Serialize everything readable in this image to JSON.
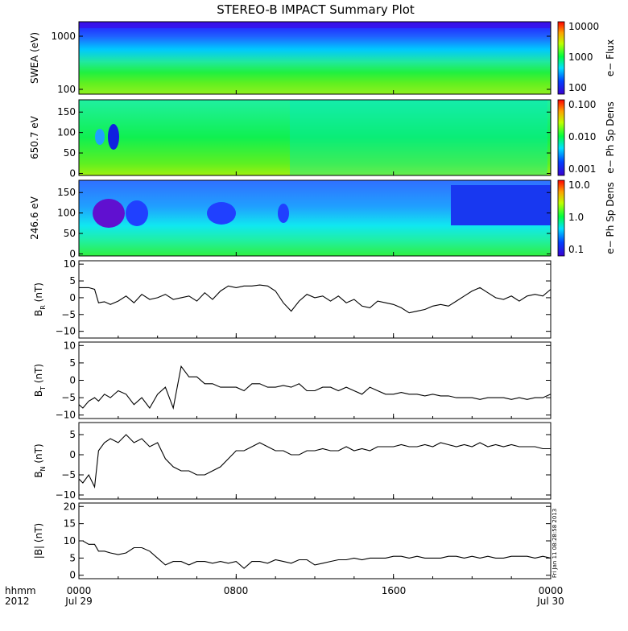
{
  "title": "STEREO-B IMPACT Summary Plot",
  "side_stamp": "Fri Jan 11 08:28:58 2013",
  "x_axis": {
    "row_label_1": "hhmm",
    "row_label_2": "2012",
    "ticks": [
      {
        "hhmm": "0000",
        "date": "Jul 29"
      },
      {
        "hhmm": "0800",
        "date": ""
      },
      {
        "hhmm": "1600",
        "date": ""
      },
      {
        "hhmm": "0000",
        "date": "Jul 30"
      }
    ]
  },
  "chart_data": [
    {
      "type": "heatmap",
      "title": "",
      "ylabel": "SWEA (eV)",
      "y_scale": "log",
      "ylim": [
        95,
        2000
      ],
      "yticks": [
        "1000",
        "100"
      ],
      "colorbar": {
        "label": "e− Flux",
        "scale": "log",
        "ticks": [
          "10000",
          "1000",
          "100"
        ]
      }
    },
    {
      "type": "heatmap",
      "title": "",
      "ylabel": "650.7 eV",
      "ylim": [
        -5,
        180
      ],
      "yticks": [
        "150",
        "100",
        "50",
        "0"
      ],
      "colorbar": {
        "label": "e− Ph Sp Dens",
        "scale": "log",
        "ticks": [
          "0.100",
          "0.010",
          "0.001"
        ]
      }
    },
    {
      "type": "heatmap",
      "title": "",
      "ylabel": "246.6 eV",
      "ylim": [
        -5,
        180
      ],
      "yticks": [
        "150",
        "100",
        "50",
        "0"
      ],
      "colorbar": {
        "label": "e− Ph Sp Dens",
        "scale": "log",
        "ticks": [
          "10.0",
          "1.0",
          "0.1"
        ]
      }
    },
    {
      "type": "line",
      "ylabel_main": "B",
      "ylabel_sub": "R",
      "ylabel_unit": " (nT)",
      "ylim": [
        -12,
        11
      ],
      "yticks": [
        "10",
        "5",
        "0",
        "−5",
        "−10"
      ],
      "x_hours": [
        0,
        0.2,
        0.5,
        0.8,
        1,
        1.3,
        1.6,
        2,
        2.4,
        2.8,
        3.2,
        3.6,
        4,
        4.4,
        4.8,
        5.2,
        5.6,
        6,
        6.4,
        6.8,
        7.2,
        7.6,
        8,
        8.4,
        8.8,
        9.2,
        9.6,
        10,
        10.4,
        10.8,
        11.2,
        11.6,
        12,
        12.4,
        12.8,
        13.2,
        13.6,
        14,
        14.4,
        14.8,
        15.2,
        15.6,
        16,
        16.4,
        16.8,
        17.2,
        17.6,
        18,
        18.4,
        18.8,
        19.2,
        19.6,
        20,
        20.4,
        20.8,
        21.2,
        21.6,
        22,
        22.4,
        22.8,
        23.2,
        23.6,
        24
      ],
      "y": [
        3,
        3,
        3,
        2.5,
        -1.5,
        -1.2,
        -2,
        -1,
        0.5,
        -1.5,
        1,
        -0.5,
        0,
        1,
        -0.5,
        0,
        0.5,
        -1,
        1.5,
        -0.5,
        2,
        3.5,
        3,
        3.5,
        3.5,
        3.8,
        3.5,
        2,
        -1.5,
        -4,
        -1,
        1,
        0,
        0.5,
        -1,
        0.5,
        -1.5,
        -0.5,
        -2.5,
        -3,
        -1,
        -1.5,
        -2,
        -3,
        -4.5,
        -4,
        -3.5,
        -2.5,
        -2,
        -2.5,
        -1,
        0.5,
        2,
        3,
        1.5,
        0,
        -0.5,
        0.5,
        -1,
        0.5,
        1,
        0.5,
        2.5
      ]
    },
    {
      "type": "line",
      "ylabel_main": "B",
      "ylabel_sub": "T",
      "ylabel_unit": " (nT)",
      "ylim": [
        -11,
        11
      ],
      "yticks": [
        "10",
        "5",
        "0",
        "−5",
        "−10"
      ],
      "x_hours": [
        0,
        0.2,
        0.5,
        0.8,
        1,
        1.3,
        1.6,
        2,
        2.4,
        2.8,
        3.2,
        3.6,
        4,
        4.4,
        4.8,
        5.2,
        5.6,
        6,
        6.4,
        6.8,
        7.2,
        7.6,
        8,
        8.4,
        8.8,
        9.2,
        9.6,
        10,
        10.4,
        10.8,
        11.2,
        11.6,
        12,
        12.4,
        12.8,
        13.2,
        13.6,
        14,
        14.4,
        14.8,
        15.2,
        15.6,
        16,
        16.4,
        16.8,
        17.2,
        17.6,
        18,
        18.4,
        18.8,
        19.2,
        19.6,
        20,
        20.4,
        20.8,
        21.2,
        21.6,
        22,
        22.4,
        22.8,
        23.2,
        23.6,
        24
      ],
      "y": [
        -7,
        -8,
        -6,
        -5,
        -6,
        -4,
        -5,
        -3,
        -4,
        -7,
        -5,
        -8,
        -4,
        -2,
        -8,
        4,
        1,
        1,
        -1,
        -1,
        -2,
        -2,
        -2,
        -3,
        -1,
        -1,
        -2,
        -2,
        -1.5,
        -2,
        -1,
        -3,
        -3,
        -2,
        -2,
        -3,
        -2,
        -3,
        -4,
        -2,
        -3,
        -4,
        -4,
        -3.5,
        -4,
        -4,
        -4.5,
        -4,
        -4.5,
        -4.5,
        -5,
        -5,
        -5,
        -5.5,
        -5,
        -5,
        -5,
        -5.5,
        -5,
        -5.5,
        -5,
        -5,
        -4
      ]
    },
    {
      "type": "line",
      "ylabel_main": "B",
      "ylabel_sub": "N",
      "ylabel_unit": " (nT)",
      "ylim": [
        -11,
        8
      ],
      "yticks": [
        "5",
        "0",
        "−5",
        "−10"
      ],
      "x_hours": [
        0,
        0.2,
        0.5,
        0.8,
        1,
        1.3,
        1.6,
        2,
        2.4,
        2.8,
        3.2,
        3.6,
        4,
        4.4,
        4.8,
        5.2,
        5.6,
        6,
        6.4,
        6.8,
        7.2,
        7.6,
        8,
        8.4,
        8.8,
        9.2,
        9.6,
        10,
        10.4,
        10.8,
        11.2,
        11.6,
        12,
        12.4,
        12.8,
        13.2,
        13.6,
        14,
        14.4,
        14.8,
        15.2,
        15.6,
        16,
        16.4,
        16.8,
        17.2,
        17.6,
        18,
        18.4,
        18.8,
        19.2,
        19.6,
        20,
        20.4,
        20.8,
        21.2,
        21.6,
        22,
        22.4,
        22.8,
        23.2,
        23.6,
        24
      ],
      "y": [
        -6,
        -7,
        -5,
        -8,
        1,
        3,
        4,
        3,
        5,
        3,
        4,
        2,
        3,
        -1,
        -3,
        -4,
        -4,
        -5,
        -5,
        -4,
        -3,
        -1,
        1,
        1,
        2,
        3,
        2,
        1,
        1,
        0,
        0,
        1,
        1,
        1.5,
        1,
        1,
        2,
        1,
        1.5,
        1,
        2,
        2,
        2,
        2.5,
        2,
        2,
        2.5,
        2,
        3,
        2.5,
        2,
        2.5,
        2,
        3,
        2,
        2.5,
        2,
        2.5,
        2,
        2,
        2,
        1.5,
        1.5
      ]
    },
    {
      "type": "line",
      "ylabel": "|B| (nT)",
      "ylim": [
        -1,
        21
      ],
      "yticks": [
        "20",
        "15",
        "10",
        "5",
        "0"
      ],
      "x_hours": [
        0,
        0.2,
        0.5,
        0.8,
        1,
        1.3,
        1.6,
        2,
        2.4,
        2.8,
        3.2,
        3.6,
        4,
        4.4,
        4.8,
        5.2,
        5.6,
        6,
        6.4,
        6.8,
        7.2,
        7.6,
        8,
        8.4,
        8.8,
        9.2,
        9.6,
        10,
        10.4,
        10.8,
        11.2,
        11.6,
        12,
        12.4,
        12.8,
        13.2,
        13.6,
        14,
        14.4,
        14.8,
        15.2,
        15.6,
        16,
        16.4,
        16.8,
        17.2,
        17.6,
        18,
        18.4,
        18.8,
        19.2,
        19.6,
        20,
        20.4,
        20.8,
        21.2,
        21.6,
        22,
        22.4,
        22.8,
        23.2,
        23.6,
        24
      ],
      "y": [
        10,
        10,
        9,
        9,
        7,
        7,
        6.5,
        6,
        6.5,
        8,
        8,
        7,
        5,
        3,
        4,
        4,
        3,
        4,
        4,
        3.5,
        4,
        3.5,
        4,
        2,
        4,
        4,
        3.5,
        4.5,
        4,
        3.5,
        4.5,
        4.5,
        3,
        3.5,
        4,
        4.5,
        4.5,
        5,
        4.5,
        5,
        5,
        5,
        5.5,
        5.5,
        5,
        5.5,
        5,
        5,
        5,
        5.5,
        5.5,
        5,
        5.5,
        5,
        5.5,
        5,
        5,
        5.5,
        5.5,
        5.5,
        5,
        5.5,
        5
      ]
    }
  ]
}
